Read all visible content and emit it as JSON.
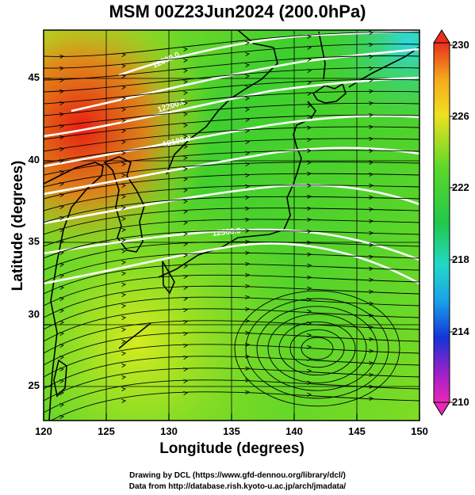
{
  "title": "MSM 00Z23Jun2024 (200.0hPa)",
  "x_axis": {
    "label": "Longitude (degrees)",
    "ticks": [
      "120",
      "125",
      "130",
      "135",
      "140",
      "145",
      "150"
    ]
  },
  "y_axis": {
    "label": "Latitude  (degrees)",
    "ticks": [
      "45",
      "40",
      "35",
      "30",
      "25"
    ]
  },
  "colorbar": {
    "ticks": [
      "230",
      "226",
      "222",
      "218",
      "214",
      "210"
    ],
    "min": 210,
    "max": 230
  },
  "contour_labels": [
    "12300.0",
    "12200.0",
    "12100.0",
    "12500.0"
  ],
  "credits": {
    "line1": "Drawing by DCL (https://www.gfd-dennou.org/library/dcl/)",
    "line2": "Data from http://database.rish.kyoto-u.ac.jp/arch/jmadata/"
  },
  "colors": {
    "field_green": "#3ecf2e",
    "field_yellow": "#c4e820",
    "field_red": "#e81f12",
    "field_cyan": "#40e0d0",
    "contour": "#ffffff",
    "coast": "#000000"
  }
}
